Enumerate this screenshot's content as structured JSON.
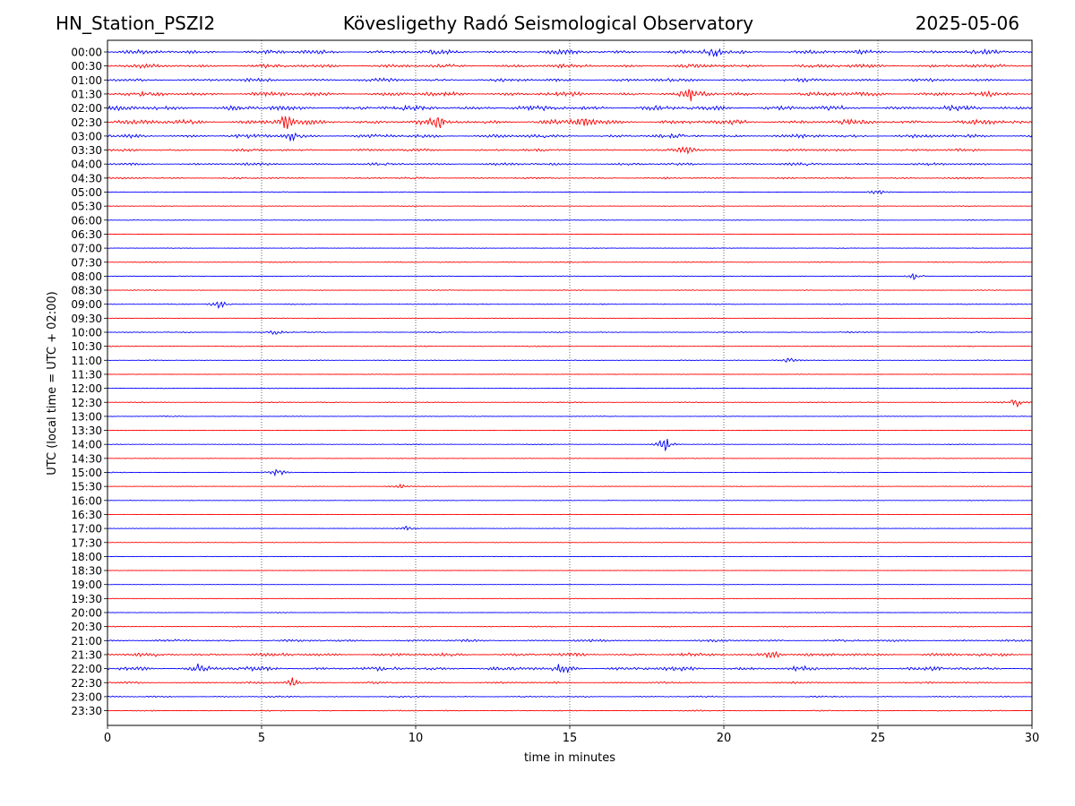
{
  "header": {
    "station": "HN_Station_PSZI2",
    "observatory": "Kövesligethy Radó Seismological Observatory",
    "date": "2025-05-06"
  },
  "chart_data": {
    "type": "line",
    "title": "Kövesligethy Radó Seismological Observatory",
    "xlabel": "time in minutes",
    "ylabel": "UTC (local time = UTC + 02:00)",
    "xlim": [
      0,
      30
    ],
    "xticks": [
      0,
      5,
      10,
      15,
      20,
      25,
      30
    ],
    "grid": "vertical dotted lines at 5, 10, 15, 20, 25 minutes",
    "colors": {
      "even_rows": "#0000ff",
      "odd_rows": "#ff0000"
    },
    "rows": [
      {
        "label": "00:00",
        "activity": 0.55
      },
      {
        "label": "00:30",
        "activity": 0.5
      },
      {
        "label": "01:00",
        "activity": 0.45
      },
      {
        "label": "01:30",
        "activity": 0.6
      },
      {
        "label": "02:00",
        "activity": 0.65
      },
      {
        "label": "02:30",
        "activity": 0.65
      },
      {
        "label": "03:00",
        "activity": 0.5
      },
      {
        "label": "03:30",
        "activity": 0.35
      },
      {
        "label": "04:00",
        "activity": 0.35
      },
      {
        "label": "04:30",
        "activity": 0.25
      },
      {
        "label": "05:00",
        "activity": 0.12
      },
      {
        "label": "05:30",
        "activity": 0.1
      },
      {
        "label": "06:00",
        "activity": 0.1
      },
      {
        "label": "06:30",
        "activity": 0.08
      },
      {
        "label": "07:00",
        "activity": 0.08
      },
      {
        "label": "07:30",
        "activity": 0.12
      },
      {
        "label": "08:00",
        "activity": 0.1
      },
      {
        "label": "08:30",
        "activity": 0.12
      },
      {
        "label": "09:00",
        "activity": 0.12
      },
      {
        "label": "09:30",
        "activity": 0.08
      },
      {
        "label": "10:00",
        "activity": 0.15
      },
      {
        "label": "10:30",
        "activity": 0.12
      },
      {
        "label": "11:00",
        "activity": 0.1
      },
      {
        "label": "11:30",
        "activity": 0.08
      },
      {
        "label": "12:00",
        "activity": 0.1
      },
      {
        "label": "12:30",
        "activity": 0.12
      },
      {
        "label": "13:00",
        "activity": 0.1
      },
      {
        "label": "13:30",
        "activity": 0.06
      },
      {
        "label": "14:00",
        "activity": 0.1
      },
      {
        "label": "14:30",
        "activity": 0.08
      },
      {
        "label": "15:00",
        "activity": 0.1
      },
      {
        "label": "15:30",
        "activity": 0.08
      },
      {
        "label": "16:00",
        "activity": 0.08
      },
      {
        "label": "16:30",
        "activity": 0.06
      },
      {
        "label": "17:00",
        "activity": 0.08
      },
      {
        "label": "17:30",
        "activity": 0.04
      },
      {
        "label": "18:00",
        "activity": 0.04
      },
      {
        "label": "18:30",
        "activity": 0.06
      },
      {
        "label": "19:00",
        "activity": 0.05
      },
      {
        "label": "19:30",
        "activity": 0.05
      },
      {
        "label": "20:00",
        "activity": 0.1
      },
      {
        "label": "20:30",
        "activity": 0.12
      },
      {
        "label": "21:00",
        "activity": 0.3
      },
      {
        "label": "21:30",
        "activity": 0.45
      },
      {
        "label": "22:00",
        "activity": 0.55
      },
      {
        "label": "22:30",
        "activity": 0.25
      },
      {
        "label": "23:00",
        "activity": 0.2
      },
      {
        "label": "23:30",
        "activity": 0.15
      }
    ],
    "bursts": [
      {
        "row": "01:30",
        "minute": 18.9,
        "amplitude": 1.0
      },
      {
        "row": "02:30",
        "minute": 5.8,
        "amplitude": 1.4
      },
      {
        "row": "02:30",
        "minute": 15.5,
        "amplitude": 1.6
      },
      {
        "row": "02:30",
        "minute": 10.8,
        "amplitude": 1.0
      },
      {
        "row": "00:00",
        "minute": 19.7,
        "amplitude": 1.2
      },
      {
        "row": "03:00",
        "minute": 6.0,
        "amplitude": 1.0
      },
      {
        "row": "03:30",
        "minute": 18.8,
        "amplitude": 1.0
      },
      {
        "row": "05:00",
        "minute": 25.0,
        "amplitude": 0.5
      },
      {
        "row": "08:00",
        "minute": 26.2,
        "amplitude": 0.7
      },
      {
        "row": "09:00",
        "minute": 3.6,
        "amplitude": 1.0
      },
      {
        "row": "10:00",
        "minute": 5.5,
        "amplitude": 0.6
      },
      {
        "row": "11:00",
        "minute": 22.1,
        "amplitude": 0.6
      },
      {
        "row": "12:30",
        "minute": 29.5,
        "amplitude": 0.9
      },
      {
        "row": "14:00",
        "minute": 18.1,
        "amplitude": 1.4
      },
      {
        "row": "15:00",
        "minute": 5.5,
        "amplitude": 0.8
      },
      {
        "row": "15:30",
        "minute": 9.5,
        "amplitude": 0.6
      },
      {
        "row": "17:00",
        "minute": 9.7,
        "amplitude": 0.5
      },
      {
        "row": "21:30",
        "minute": 21.6,
        "amplitude": 1.0
      },
      {
        "row": "22:00",
        "minute": 14.8,
        "amplitude": 1.2
      },
      {
        "row": "22:00",
        "minute": 3.0,
        "amplitude": 1.0
      },
      {
        "row": "22:30",
        "minute": 6.0,
        "amplitude": 0.8
      }
    ]
  }
}
